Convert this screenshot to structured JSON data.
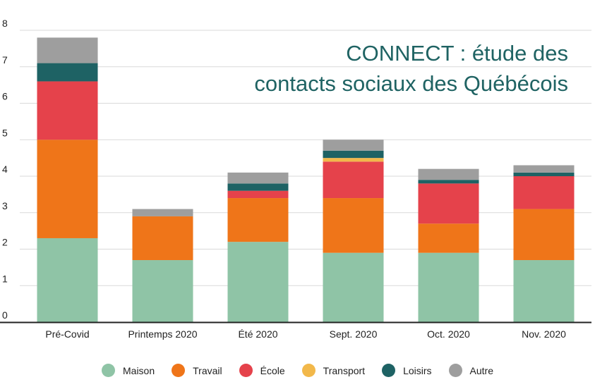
{
  "chart_data": {
    "type": "bar",
    "stacked": true,
    "title_lines": [
      "CONNECT : étude des",
      "contacts sociaux des Québécois"
    ],
    "categories": [
      "Pré-Covid",
      "Printemps 2020",
      "Été 2020",
      "Sept. 2020",
      "Oct. 2020",
      "Nov. 2020"
    ],
    "ylim": [
      0,
      8
    ],
    "yticks": [
      "0",
      "1",
      "2",
      "3",
      "4",
      "5",
      "6",
      "7",
      "8"
    ],
    "grid": true,
    "legend_position": "bottom",
    "series": [
      {
        "name": "Maison",
        "color": "#8fc4a6",
        "values": [
          2.3,
          1.7,
          2.2,
          1.9,
          1.9,
          1.7
        ]
      },
      {
        "name": "Travail",
        "color": "#ef7519",
        "values": [
          2.7,
          1.2,
          1.2,
          1.5,
          0.8,
          1.4
        ]
      },
      {
        "name": "École",
        "color": "#e5424b",
        "values": [
          1.6,
          0.0,
          0.2,
          1.0,
          1.1,
          0.9
        ]
      },
      {
        "name": "Transport",
        "color": "#f2b84a",
        "values": [
          0.0,
          0.0,
          0.0,
          0.1,
          0.0,
          0.0
        ]
      },
      {
        "name": "Loisirs",
        "color": "#1e6264",
        "values": [
          0.5,
          0.0,
          0.2,
          0.2,
          0.1,
          0.1
        ]
      },
      {
        "name": "Autre",
        "color": "#9e9e9e",
        "values": [
          0.7,
          0.2,
          0.3,
          0.3,
          0.3,
          0.2
        ]
      }
    ]
  }
}
